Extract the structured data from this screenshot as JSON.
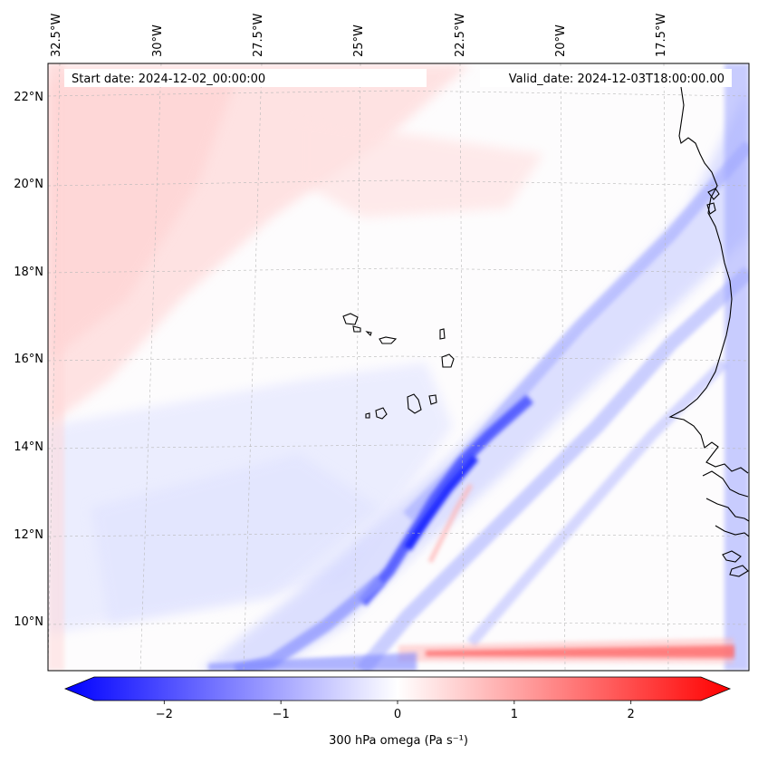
{
  "map": {
    "start_date_label": "Start date: 2024-12-02_00:00:00",
    "valid_date_label": "Valid_date: 2024-12-03T18:00:00.00",
    "lon_labels": [
      "32.5°W",
      "30°W",
      "27.5°W",
      "25°W",
      "22.5°W",
      "20°W",
      "17.5°W"
    ],
    "lat_labels": [
      "22°N",
      "20°N",
      "18°N",
      "16°N",
      "14°N",
      "12°N",
      "10°N"
    ],
    "extent": {
      "lon_min": -32.6,
      "lon_max": -15.5,
      "lat_min": 8.9,
      "lat_max": 22.8
    },
    "field_name": "300 hPa omega",
    "colors": {
      "negative": "#0000ff",
      "neutral": "#ffffff",
      "positive": "#ff0000",
      "coast": "#000000",
      "grid": "#b0b0b0"
    }
  },
  "colorbar": {
    "label": "300 hPa omega (Pa s⁻¹)",
    "tick_labels": [
      "−2",
      "−1",
      "0",
      "1",
      "2"
    ],
    "ticks": [
      -2,
      -1,
      0,
      1,
      2
    ],
    "vmin": -2.6,
    "vmax": 2.6,
    "extend": "both",
    "cmap": "bwr"
  }
}
